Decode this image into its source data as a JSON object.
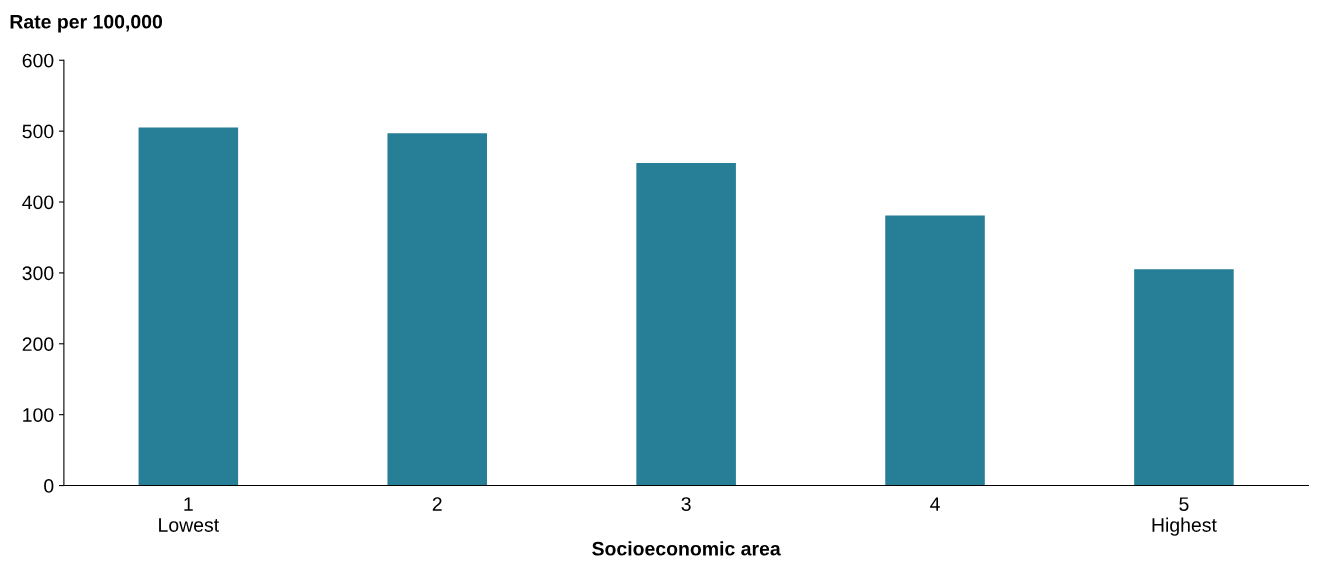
{
  "chart_data": {
    "type": "bar",
    "ylabel": "Rate per 100,000",
    "xlabel": "Socioeconomic area",
    "categories": [
      "1\nLowest",
      "2",
      "3",
      "4",
      "5\nHighest"
    ],
    "values": [
      505,
      497,
      455,
      381,
      305
    ],
    "color": "#267f96",
    "ylim": [
      0,
      600
    ],
    "yticks": [
      0,
      100,
      200,
      300,
      400,
      500,
      600
    ],
    "grid": false,
    "legend": false
  }
}
